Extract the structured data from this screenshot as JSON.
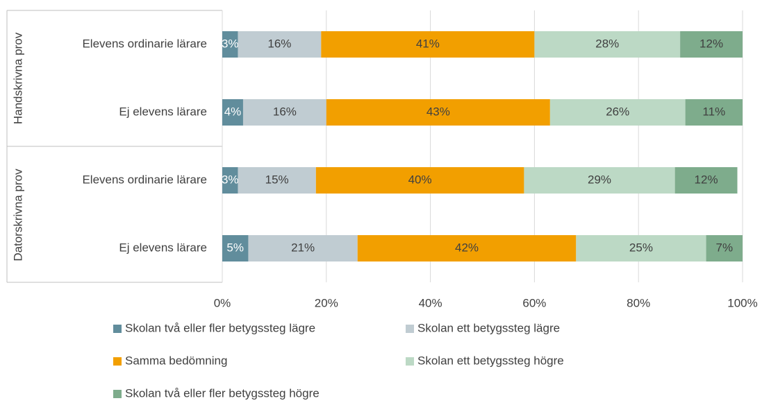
{
  "chart_data": {
    "type": "stacked-bar-horizontal",
    "groups": [
      "Handskrivna prov",
      "Datorskrivna prov"
    ],
    "categories": [
      "Elevens ordinarie lärare",
      "Ej elevens lärare",
      "Elevens ordinarie lärare",
      "Ej elevens lärare"
    ],
    "series": [
      {
        "name": "Skolan två eller fler betygssteg lägre",
        "color": "#618d9c",
        "values": [
          3,
          4,
          3,
          5
        ],
        "value_labels": [
          "3%",
          "4%",
          "3%",
          "5%"
        ]
      },
      {
        "name": "Skolan ett betygssteg lägre",
        "color": "#c0ccd2",
        "values": [
          16,
          16,
          15,
          21
        ],
        "value_labels": [
          "16%",
          "16%",
          "15%",
          "21%"
        ]
      },
      {
        "name": "Samma bedömning",
        "color": "#f29f00",
        "values": [
          41,
          43,
          40,
          42
        ],
        "value_labels": [
          "41%",
          "43%",
          "40%",
          "42%"
        ]
      },
      {
        "name": "Skolan ett betygssteg högre",
        "color": "#bcd9c5",
        "values": [
          28,
          26,
          29,
          25
        ],
        "value_labels": [
          "28%",
          "26%",
          "29%",
          "25%"
        ]
      },
      {
        "name": "Skolan två eller fler betygssteg högre",
        "color": "#7eac8c",
        "values": [
          12,
          11,
          12,
          7
        ],
        "value_labels": [
          "12%",
          "11%",
          "12%",
          "7%"
        ]
      }
    ],
    "xlim": [
      0,
      100
    ],
    "xticks": [
      {
        "value": 0,
        "label": "0%"
      },
      {
        "value": 20,
        "label": "20%"
      },
      {
        "value": 40,
        "label": "40%"
      },
      {
        "value": 60,
        "label": "60%"
      },
      {
        "value": 80,
        "label": "80%"
      },
      {
        "value": 100,
        "label": "100%"
      }
    ],
    "grid": true
  }
}
